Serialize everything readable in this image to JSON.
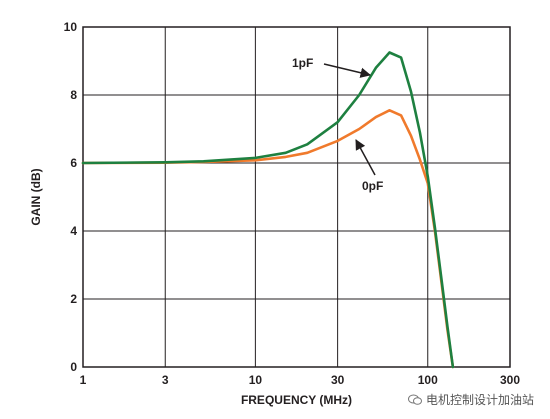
{
  "chart_data": {
    "type": "line",
    "xlabel": "FREQUENCY (MHz)",
    "ylabel": "GAIN (dB)",
    "xscale": "log",
    "xlim": [
      1,
      300
    ],
    "ylim": [
      0,
      10
    ],
    "xticks": [
      1,
      3,
      10,
      30,
      100,
      300
    ],
    "xtick_labels": [
      "1",
      "3",
      "10",
      "30",
      "100",
      "300"
    ],
    "yticks": [
      0,
      2,
      4,
      6,
      8,
      10
    ],
    "ytick_labels": [
      "0",
      "2",
      "4",
      "6",
      "8",
      "10"
    ],
    "grid": true,
    "series": [
      {
        "name": "1pF",
        "color": "#1e8040",
        "x": [
          1,
          3,
          5,
          10,
          15,
          20,
          30,
          40,
          50,
          60,
          70,
          80,
          90,
          100,
          110,
          120,
          130,
          140
        ],
        "y": [
          6.0,
          6.02,
          6.05,
          6.15,
          6.3,
          6.55,
          7.2,
          8.0,
          8.8,
          9.25,
          9.1,
          8.1,
          6.9,
          5.6,
          4.1,
          2.6,
          1.2,
          0
        ]
      },
      {
        "name": "0pF",
        "color": "#f07a2c",
        "x": [
          1,
          3,
          5,
          10,
          15,
          20,
          30,
          40,
          50,
          60,
          70,
          80,
          90,
          100,
          110,
          120,
          130,
          140
        ],
        "y": [
          6.0,
          6.01,
          6.03,
          6.08,
          6.18,
          6.3,
          6.65,
          7.0,
          7.35,
          7.55,
          7.4,
          6.8,
          6.1,
          5.4,
          4.0,
          2.5,
          1.1,
          0
        ]
      }
    ],
    "annotations": [
      {
        "text": "1pF",
        "series": "1pF"
      },
      {
        "text": "0pF",
        "series": "0pF"
      }
    ]
  },
  "watermark": {
    "text": "电机控制设计加油站",
    "icon": "chat-bubble-icon"
  }
}
